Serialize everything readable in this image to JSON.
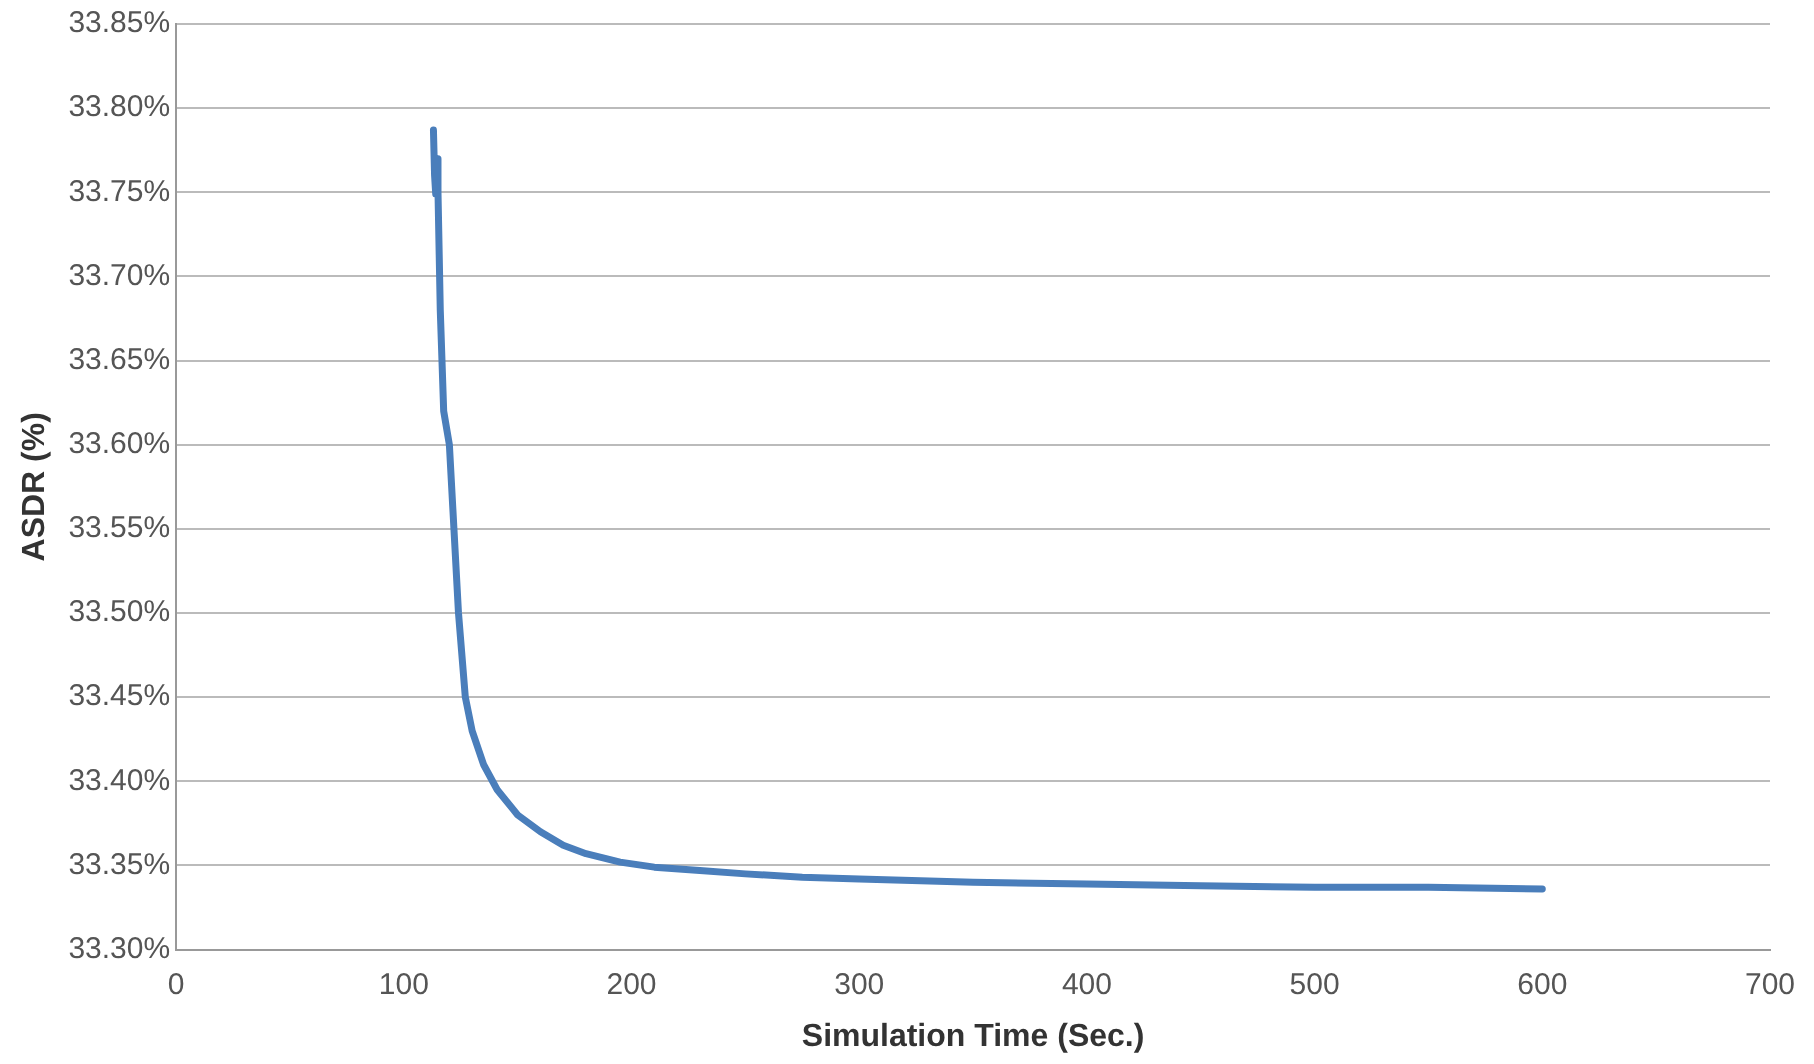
{
  "chart_data": {
    "type": "line",
    "xlabel": "Simulation Time (Sec.)",
    "ylabel": "ASDR (%)",
    "x": [
      113,
      113.5,
      114,
      114.5,
      115,
      116,
      117.5,
      120,
      122,
      124,
      127,
      130,
      135,
      141,
      150,
      160,
      170,
      180,
      195,
      210,
      230,
      250,
      275,
      300,
      350,
      400,
      450,
      500,
      550,
      600
    ],
    "series": [
      {
        "color": "#4a7ebb",
        "values": [
          33.787,
          33.76,
          33.749,
          33.77,
          33.75,
          33.68,
          33.62,
          33.6,
          33.55,
          33.5,
          33.45,
          33.43,
          33.41,
          33.395,
          33.38,
          33.37,
          33.362,
          33.357,
          33.352,
          33.349,
          33.347,
          33.345,
          33.343,
          33.342,
          33.34,
          33.339,
          33.338,
          33.337,
          33.337,
          33.336
        ]
      }
    ],
    "xlim": [
      0,
      700
    ],
    "xticks": [
      0,
      100,
      200,
      300,
      400,
      500,
      600,
      700
    ],
    "ylim": [
      33.3,
      33.85
    ],
    "yticks": [
      {
        "value": 33.3,
        "label": "33.30%"
      },
      {
        "value": 33.35,
        "label": "33.35%"
      },
      {
        "value": 33.4,
        "label": "33.40%"
      },
      {
        "value": 33.45,
        "label": "33.45%"
      },
      {
        "value": 33.5,
        "label": "33.50%"
      },
      {
        "value": 33.55,
        "label": "33.55%"
      },
      {
        "value": 33.6,
        "label": "33.60%"
      },
      {
        "value": 33.65,
        "label": "33.65%"
      },
      {
        "value": 33.7,
        "label": "33.70%"
      },
      {
        "value": 33.75,
        "label": "33.75%"
      },
      {
        "value": 33.8,
        "label": "33.80%"
      },
      {
        "value": 33.85,
        "label": "33.85%"
      }
    ],
    "grid": "y",
    "legend": false,
    "marker": "none",
    "line_style": "solid"
  }
}
